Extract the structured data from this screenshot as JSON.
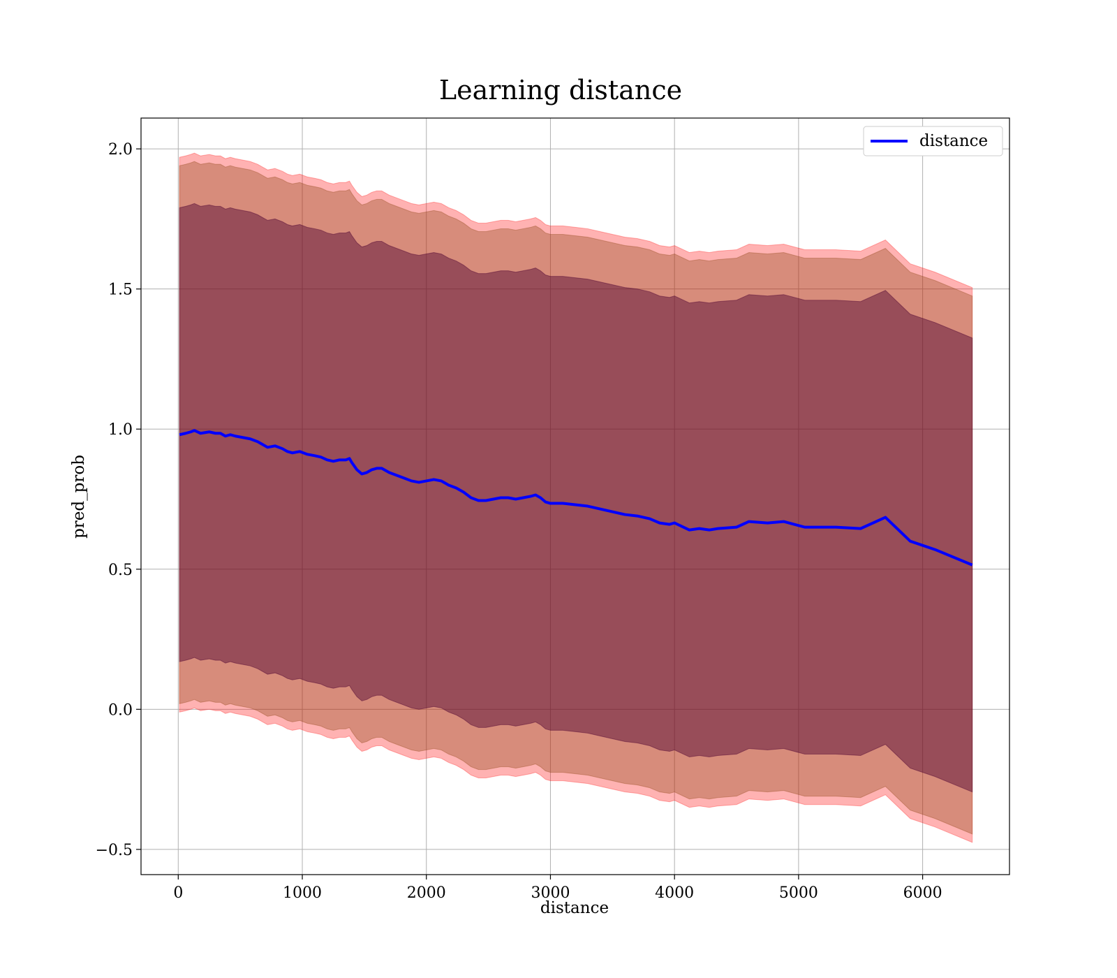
{
  "chart_data": {
    "type": "line",
    "title": "Learning distance",
    "xlabel": "distance",
    "ylabel": "pred_prob",
    "xlim": [
      -300,
      6700
    ],
    "ylim": [
      -0.59,
      2.11
    ],
    "xticks": [
      0,
      1000,
      2000,
      3000,
      4000,
      5000,
      6000
    ],
    "xtick_labels": [
      "0",
      "1000",
      "2000",
      "3000",
      "4000",
      "5000",
      "6000"
    ],
    "yticks": [
      -0.5,
      0.0,
      0.5,
      1.0,
      1.5,
      2.0
    ],
    "ytick_labels": [
      "−0.5",
      "0.0",
      "0.5",
      "1.0",
      "1.5",
      "2.0"
    ],
    "grid": true,
    "legend_position": "top-right",
    "series": [
      {
        "name": "distance",
        "color": "#0000ff",
        "x": [
          10,
          60,
          100,
          130,
          180,
          250,
          300,
          340,
          380,
          420,
          460,
          520,
          580,
          640,
          680,
          720,
          780,
          840,
          880,
          920,
          980,
          1040,
          1100,
          1150,
          1200,
          1250,
          1300,
          1350,
          1380,
          1400,
          1440,
          1480,
          1520,
          1560,
          1600,
          1640,
          1700,
          1760,
          1820,
          1880,
          1940,
          2000,
          2060,
          2120,
          2180,
          2240,
          2300,
          2360,
          2420,
          2480,
          2540,
          2600,
          2660,
          2720,
          2780,
          2840,
          2880,
          2920,
          2960,
          3000,
          3100,
          3200,
          3300,
          3400,
          3500,
          3600,
          3700,
          3800,
          3880,
          3960,
          4000,
          4120,
          4200,
          4280,
          4350,
          4500,
          4600,
          4750,
          4880,
          5050,
          5200,
          5300,
          5500,
          5700,
          5900,
          6100,
          6400
        ],
        "y": [
          0.98,
          0.985,
          0.99,
          0.995,
          0.985,
          0.99,
          0.985,
          0.985,
          0.975,
          0.98,
          0.975,
          0.97,
          0.965,
          0.955,
          0.945,
          0.935,
          0.94,
          0.93,
          0.92,
          0.915,
          0.92,
          0.91,
          0.905,
          0.9,
          0.89,
          0.885,
          0.89,
          0.89,
          0.895,
          0.88,
          0.855,
          0.84,
          0.845,
          0.855,
          0.86,
          0.86,
          0.845,
          0.835,
          0.825,
          0.815,
          0.81,
          0.815,
          0.82,
          0.815,
          0.8,
          0.79,
          0.775,
          0.755,
          0.745,
          0.745,
          0.75,
          0.755,
          0.755,
          0.75,
          0.755,
          0.76,
          0.765,
          0.755,
          0.74,
          0.735,
          0.735,
          0.73,
          0.725,
          0.715,
          0.705,
          0.695,
          0.69,
          0.68,
          0.665,
          0.66,
          0.665,
          0.64,
          0.645,
          0.64,
          0.645,
          0.65,
          0.67,
          0.665,
          0.67,
          0.65,
          0.65,
          0.65,
          0.645,
          0.685,
          0.6,
          0.57,
          0.515
        ]
      }
    ],
    "bands": [
      {
        "name": "outer",
        "color": "#ff0000",
        "opacity": 0.3,
        "offset": 0.99
      },
      {
        "name": "middle",
        "color": "#8b4513",
        "opacity": 0.35,
        "offset": 0.96
      },
      {
        "name": "inner",
        "color": "#4b0030",
        "opacity": 0.45,
        "offset": 0.81
      }
    ]
  }
}
